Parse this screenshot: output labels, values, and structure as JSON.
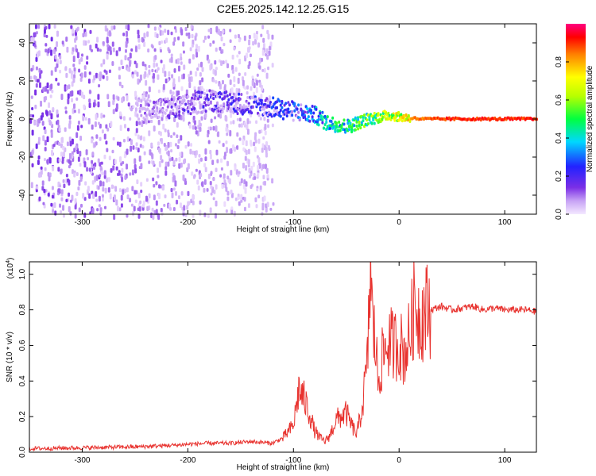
{
  "title": "C2E5.2025.142.12.25.G15",
  "colors": {
    "snr_line": "#e8332f",
    "spectrogram_low": "#8a2be2",
    "axis": "#000000"
  },
  "chart_data": [
    {
      "type": "heatmap",
      "title": "C2E5.2025.142.12.25.G15",
      "xlabel": "Height of straight line (km)",
      "ylabel": "Frequency (Hz)",
      "xlim": [
        -350,
        130
      ],
      "ylim": [
        -50,
        50
      ],
      "x_ticks": [
        -300,
        -200,
        -100,
        0,
        100
      ],
      "x_tick_labels": [
        "-300",
        "-200",
        "-100",
        "0",
        "100"
      ],
      "y_ticks": [
        -40,
        -20,
        0,
        20,
        40
      ],
      "y_tick_labels": [
        "-40",
        "-20",
        "0",
        "20",
        "40"
      ],
      "colorbar": {
        "label": "Normalized spectral amplitude",
        "range": [
          0,
          1
        ],
        "ticks": [
          0.0,
          0.2,
          0.4,
          0.6,
          0.8
        ],
        "tick_labels": [
          "0.0",
          "0.2",
          "0.4",
          "0.6",
          "0.8"
        ],
        "colormap": "rainbow"
      },
      "ridge": {
        "x": [
          -250,
          -210,
          -180,
          -150,
          -120,
          -100,
          -80,
          -70,
          -60,
          -50,
          -40,
          -30,
          -20,
          -10,
          0,
          20,
          50,
          80,
          110,
          130
        ],
        "frequency": [
          4,
          6,
          10,
          8,
          6,
          4,
          2,
          -2,
          -3,
          -4,
          -2,
          0,
          1,
          2,
          1,
          0,
          0,
          0,
          0,
          0
        ],
        "amplitude": [
          0.12,
          0.2,
          0.22,
          0.25,
          0.3,
          0.32,
          0.45,
          0.5,
          0.55,
          0.55,
          0.6,
          0.65,
          0.7,
          0.75,
          0.8,
          0.9,
          0.95,
          0.95,
          0.95,
          0.95
        ]
      },
      "noise_extent_x": [
        -350,
        -120
      ]
    },
    {
      "type": "line",
      "xlabel": "Height of straight line (km)",
      "ylabel": "SNR (10 * v/v)",
      "y_scale_label": "(x10",
      "y_scale_exp": "4",
      "xlim": [
        -350,
        130
      ],
      "ylim": [
        0,
        1.07
      ],
      "x_ticks": [
        -300,
        -200,
        -100,
        0,
        100
      ],
      "x_tick_labels": [
        "-300",
        "-200",
        "-100",
        "0",
        "100"
      ],
      "y_ticks": [
        0.0,
        0.2,
        0.4,
        0.6,
        0.8,
        1.0
      ],
      "y_tick_labels": [
        "0.0",
        "0.2",
        "0.4",
        "0.6",
        "0.8",
        "1.0"
      ],
      "series": [
        {
          "x": [
            -350,
            -300,
            -250,
            -210,
            -200,
            -180,
            -160,
            -140,
            -120,
            -110,
            -100,
            -95,
            -90,
            -85,
            -80,
            -75,
            -70,
            -65,
            -60,
            -55,
            -50,
            -45,
            -40,
            -35,
            -30,
            -27,
            -25,
            -22,
            -20,
            -15,
            -10,
            -5,
            0,
            5,
            10,
            15,
            20,
            25,
            30,
            40,
            50,
            60,
            70,
            80,
            90,
            100,
            110,
            120,
            130
          ],
          "y": [
            0.02,
            0.025,
            0.03,
            0.04,
            0.045,
            0.05,
            0.05,
            0.06,
            0.05,
            0.08,
            0.15,
            0.35,
            0.3,
            0.22,
            0.12,
            0.08,
            0.06,
            0.1,
            0.18,
            0.2,
            0.22,
            0.15,
            0.1,
            0.25,
            0.5,
            1.07,
            0.7,
            0.6,
            0.4,
            0.55,
            0.62,
            0.6,
            0.62,
            0.55,
            0.65,
            0.85,
            0.75,
            0.8,
            0.8,
            0.82,
            0.8,
            0.81,
            0.82,
            0.8,
            0.81,
            0.8,
            0.8,
            0.8,
            0.79
          ]
        }
      ]
    }
  ]
}
